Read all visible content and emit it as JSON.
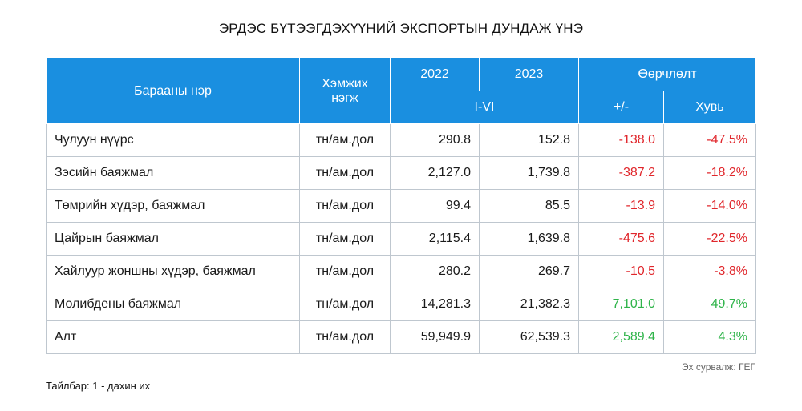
{
  "title": "ЭРДЭС БҮТЭЭГДЭХҮҮНИЙ ЭКСПОРТЫН ДУНДАЖ ҮНЭ",
  "header": {
    "name": "Барааны нэр",
    "unit_line1": "Хэмжих",
    "unit_line2": "нэгж",
    "y2022": "2022",
    "y2023": "2023",
    "change": "Өөрчлөлт",
    "period": "I-VI",
    "diff": "+/-",
    "share": "Хувь"
  },
  "rows": [
    {
      "name": "Чулуун нүүрс",
      "unit": "тн/ам.дол",
      "v2022": "290.8",
      "v2023": "152.8",
      "diff": "-138.0",
      "pct": "-47.5%"
    },
    {
      "name": "Зэсийн баяжмал",
      "unit": "тн/ам.дол",
      "v2022": "2,127.0",
      "v2023": "1,739.8",
      "diff": "-387.2",
      "pct": "-18.2%"
    },
    {
      "name": "Төмрийн хүдэр, баяжмал",
      "unit": "тн/ам.дол",
      "v2022": "99.4",
      "v2023": "85.5",
      "diff": "-13.9",
      "pct": "-14.0%"
    },
    {
      "name": "Цайрын баяжмал",
      "unit": "тн/ам.дол",
      "v2022": "2,115.4",
      "v2023": "1,639.8",
      "diff": "-475.6",
      "pct": "-22.5%"
    },
    {
      "name": "Хайлуур жоншны хүдэр, баяжмал",
      "unit": "тн/ам.дол",
      "v2022": "280.2",
      "v2023": "269.7",
      "diff": "-10.5",
      "pct": "-3.8%"
    },
    {
      "name": "Молибдены баяжмал",
      "unit": "тн/ам.дол",
      "v2022": "14,281.3",
      "v2023": "21,382.3",
      "diff": "7,101.0",
      "pct": "49.7%"
    },
    {
      "name": "Алт",
      "unit": "тн/ам.дол",
      "v2022": "59,949.9",
      "v2023": "62,539.3",
      "diff": "2,589.4",
      "pct": "4.3%"
    }
  ],
  "source": "Эх сурвалж: ГЕГ",
  "note": "Тайлбар: 1 - дахин их",
  "colors": {
    "header_bg": "#1a8fe0",
    "negative": "#e0262b",
    "positive": "#2fb44a"
  }
}
